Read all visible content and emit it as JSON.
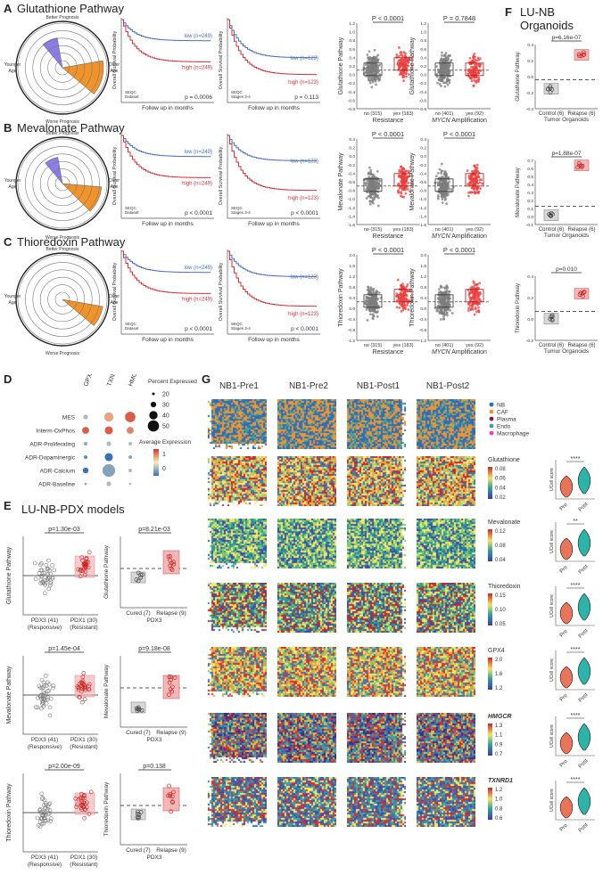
{
  "panels": {
    "A": {
      "label": "A",
      "title": "Glutathione Pathway"
    },
    "B": {
      "label": "B",
      "title": "Mevalonate Pathway"
    },
    "C": {
      "label": "C",
      "title": "Thioredoxin Pathway"
    },
    "D": {
      "label": "D"
    },
    "E": {
      "label": "E",
      "title": "LU-NB-PDX models"
    },
    "F": {
      "label": "F",
      "title": "LU-NB Organoids"
    },
    "G": {
      "label": "G"
    }
  },
  "radar": {
    "top": "Better Prognosis",
    "bottom": "Worse Prognosis",
    "left": "Younger Age",
    "right": "Older Age"
  },
  "km": {
    "ylabel": "Overall Survival Probability",
    "xlabel": "Follow up in months",
    "dataset1": "SEQC Dataset",
    "dataset2": "SEQC Stages 3-4",
    "rows": [
      {
        "low1": "low (n=249)",
        "high1": "high (n=249)",
        "p1": "p = 0.0006",
        "low2": "low (n=123)",
        "high2": "high (n=123)",
        "p2": "p = 0.113"
      },
      {
        "low1": "low (n=249)",
        "high1": "high (n=249)",
        "p1": "p < 0.0001",
        "low2": "low (n=123)",
        "high2": "high (n=123)",
        "p2": "p < 0.0001"
      },
      {
        "low1": "low (n=249)",
        "high1": "high (n=249)",
        "p1": "p < 0.0001",
        "low2": "low (n=123)",
        "high2": "high (n=123)",
        "p2": "p < 0.0001"
      }
    ]
  },
  "box": {
    "rows": [
      {
        "ylabel": "Glutathione Pathway",
        "ticks": [
          "1.2",
          "1.0",
          "0.8",
          "0.6",
          "0.4",
          "0.2",
          "0.0",
          "-0.2",
          "-0.4",
          "-0.6",
          "-0.8"
        ],
        "p1": "P < 0.0001",
        "p2": "P = 0.7848"
      },
      {
        "ylabel": "Mevalonate Pathway",
        "ticks": [
          "0.4",
          "0.2",
          "0.0",
          "-0.2",
          "-0.4",
          "-0.6",
          "-0.8",
          "-1.0",
          "-1.2",
          "-1.4",
          "-1.6"
        ],
        "p1": "P < 0.0001",
        "p2": "P < 0.0001"
      },
      {
        "ylabel": "Thioredoxin Pathway",
        "ticks": [
          "2.0",
          "1.6",
          "1.2",
          "0.8",
          "0.4",
          "0.0",
          "-0.4",
          "-0.8",
          "-1.2"
        ],
        "p1": "P < 0.0001",
        "p2": "P < 0.0001"
      }
    ],
    "res_cats": [
      "no (315)",
      "yes (183)"
    ],
    "res_label": "Resistance",
    "mycn_cats": [
      "no (401)",
      "yes (92)"
    ],
    "mycn_label_i": "MYCN",
    "mycn_label": " Amplification"
  },
  "organoids": {
    "cats": [
      "Control (6)",
      "Relapse (6)"
    ],
    "xlabel": "Tumor Organoids",
    "rows": [
      {
        "ylabel": "Glutathione Pathway",
        "p": "p=6.16e-07",
        "ticks": [
          "0.4",
          "0.2",
          "0.0",
          "-0.2",
          "-0.4"
        ]
      },
      {
        "ylabel": "Mevalonate Pathway",
        "p": "p=1.88e-07",
        "ticks": [
          "0.7",
          "0.6",
          "0.5",
          "0.4",
          "0.3",
          "0.2",
          "0.1",
          "0.0",
          "-0.1"
        ]
      },
      {
        "ylabel": "Thioredoxin Pathway",
        "p": "p=0.010",
        "ticks": [
          "0.4",
          "0.2",
          "0.0",
          "-0.2"
        ]
      }
    ]
  },
  "dotplot": {
    "genes": [
      "GPX4",
      "TXNRD1",
      "HMGCR"
    ],
    "rows": [
      "MES",
      "Interm-OxPhos",
      "ADR-Proliferating",
      "ADR-Dopaminergic",
      "ADR-Calcium",
      "ADR-Baseline"
    ],
    "size_title": "Percent Expressed",
    "sizes": [
      "20",
      "30",
      "40",
      "50"
    ],
    "color_title": "Average Expression",
    "color_ticks": [
      "1",
      "0"
    ]
  },
  "pdx": {
    "rows": [
      {
        "ylabel": "Glutathione Pathway",
        "p1": "p=1.30e-03",
        "p2": "p=8.21e-03",
        "ylabel2": "Glutathione Pathway"
      },
      {
        "ylabel": "Mevalonate Pathway",
        "p1": "p=1.45e-04",
        "p2": "p=9.18e-08",
        "ylabel2": "Mevalonate Pathway"
      },
      {
        "ylabel": "Thioredoxin Pathway",
        "p1": "p=2.00e-09",
        "p2": "p=0.138",
        "ylabel2": "Thioredoxin Pathway"
      }
    ],
    "left_cats": [
      "PDX3 (41)",
      "PDX1 (30)"
    ],
    "left_sub": [
      "(Responsive)",
      "(Resistant)"
    ],
    "right_cats": [
      "Cured (7)",
      "Relapse (9)"
    ],
    "right_sub": "PDX3"
  },
  "spatial": {
    "samples": [
      "NB1-Pre1",
      "NB1-Pre2",
      "NB1-Post1",
      "NB1-Post2"
    ],
    "legend": [
      "NB",
      "CAF",
      "Plasma",
      "Endo",
      "Macrophage"
    ],
    "legend_colors": [
      "#2f6db5",
      "#e8963a",
      "#8a1a3a",
      "#3fa39b",
      "#e63fc9"
    ],
    "rows": [
      {
        "name": "Glutathione",
        "ticks": [
          "0.08",
          "0.06",
          "0.04",
          "0.02"
        ],
        "sig": "****"
      },
      {
        "name": "Mevalonate",
        "ticks": [
          "0.12",
          "0.08",
          "0.04"
        ],
        "sig": "**"
      },
      {
        "name": "Thioredoxin",
        "ticks": [
          "0.15",
          "0.10",
          "0.05"
        ],
        "sig": "****"
      },
      {
        "name": "GPX4",
        "ticks": [
          "2.0",
          "1.6",
          "1.2"
        ],
        "sig": "****"
      },
      {
        "name": "HMGCR",
        "ticks": [
          "1.3",
          "1.1",
          "0.9",
          "0.7"
        ],
        "sig": "****"
      },
      {
        "name": "TXNRD1",
        "ticks": [
          "1.2",
          "1.0",
          "0.8",
          "0.6"
        ],
        "sig": "****"
      }
    ],
    "violin_ylabel": "UCell score",
    "violin_cats": [
      "Pre",
      "Post"
    ]
  }
}
